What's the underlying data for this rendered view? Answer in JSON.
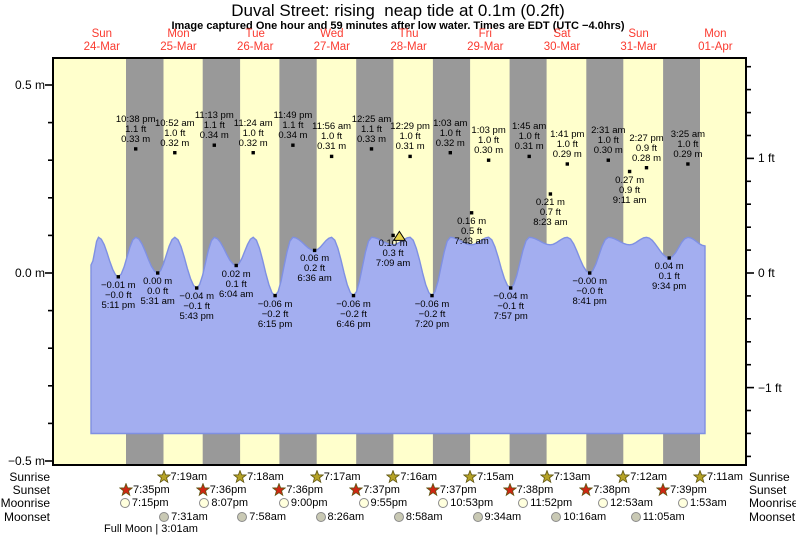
{
  "header": {
    "title": "Duval Street: rising  neap tide at 0.1m (0.2ft)",
    "subtitle": "Image captured One hour and 59 minutes after low water. Times are EDT (UTC −4.0hrs)"
  },
  "colors": {
    "day_band": "#ffffcc",
    "night_band": "#999999",
    "water_fill": "#a3aef0",
    "water_edge": "#7f90e2",
    "day_label": "#fa3b30",
    "marker_fill": "#e8d44a",
    "sunrise_star": "#b5a226",
    "sunset_star": "#cf2613",
    "moonrise_fill": "#ffffdd",
    "moonset_fill": "#c9c9b4",
    "text": "#000000"
  },
  "chart_data": {
    "type": "area",
    "title": "Duval Street: rising  neap tide at 0.1m (0.2ft)",
    "x_axis": {
      "days": [
        {
          "name": "Sun",
          "date": "24-Mar"
        },
        {
          "name": "Mon",
          "date": "25-Mar"
        },
        {
          "name": "Tue",
          "date": "26-Mar"
        },
        {
          "name": "Wed",
          "date": "27-Mar"
        },
        {
          "name": "Thu",
          "date": "28-Mar"
        },
        {
          "name": "Fri",
          "date": "29-Mar"
        },
        {
          "name": "Sat",
          "date": "30-Mar"
        },
        {
          "name": "Sun",
          "date": "31-Mar"
        },
        {
          "name": "Mon",
          "date": "01-Apr"
        }
      ]
    },
    "y_axis_left": {
      "labels": [
        "0.5 m",
        "0.0 m",
        "−0.5 m"
      ],
      "values_m": [
        0.5,
        0.0,
        -0.5
      ]
    },
    "y_axis_right": {
      "labels": [
        "1 ft",
        "0 ft",
        "−1 ft"
      ],
      "values_ft": [
        1,
        0,
        -1
      ]
    },
    "tide_events": [
      {
        "type": "high",
        "day": 0,
        "time": "10:38 pm",
        "ft": "1.1 ft",
        "m": "0.33 m",
        "value_m": 0.33
      },
      {
        "type": "high",
        "day": 1,
        "time": "10:52 am",
        "ft": "1.0 ft",
        "m": "0.32 m",
        "value_m": 0.32
      },
      {
        "type": "high",
        "day": 1,
        "time": "11:13 pm",
        "ft": "1.1 ft",
        "m": "0.34 m",
        "value_m": 0.34
      },
      {
        "type": "high",
        "day": 2,
        "time": "11:24 am",
        "ft": "1.0 ft",
        "m": "0.32 m",
        "value_m": 0.32
      },
      {
        "type": "high",
        "day": 2,
        "time": "11:49 pm",
        "ft": "1.1 ft",
        "m": "0.34 m",
        "value_m": 0.34
      },
      {
        "type": "high",
        "day": 3,
        "time": "11:56 am",
        "ft": "1.0 ft",
        "m": "0.31 m",
        "value_m": 0.31
      },
      {
        "type": "high",
        "day": 4,
        "time": "12:25 am",
        "ft": "1.1 ft",
        "m": "0.33 m",
        "value_m": 0.33
      },
      {
        "type": "high",
        "day": 4,
        "time": "12:29 pm",
        "ft": "1.0 ft",
        "m": "0.31 m",
        "value_m": 0.31
      },
      {
        "type": "high",
        "day": 5,
        "time": "1:03 am",
        "ft": "1.0 ft",
        "m": "0.32 m",
        "value_m": 0.32
      },
      {
        "type": "high",
        "day": 5,
        "time": "1:03 pm",
        "ft": "1.0 ft",
        "m": "0.30 m",
        "value_m": 0.3
      },
      {
        "type": "high",
        "day": 6,
        "time": "1:45 am",
        "ft": "1.0 ft",
        "m": "0.31 m",
        "value_m": 0.31
      },
      {
        "type": "high",
        "day": 6,
        "time": "1:41 pm",
        "ft": "1.0 ft",
        "m": "0.29 m",
        "value_m": 0.29
      },
      {
        "type": "high",
        "day": 7,
        "time": "2:31 am",
        "ft": "1.0 ft",
        "m": "0.30 m",
        "value_m": 0.3
      },
      {
        "type": "high",
        "day": 7,
        "time": "2:27 pm",
        "ft": "0.9 ft",
        "m": "0.28 m",
        "value_m": 0.28
      },
      {
        "type": "high",
        "day": 8,
        "time": "3:25 am",
        "ft": "1.0 ft",
        "m": "0.29 m",
        "value_m": 0.29
      },
      {
        "type": "low",
        "day": 0,
        "time": "5:11 pm",
        "ft": "−0.0 ft",
        "m": "−0.01 m",
        "value_m": -0.01
      },
      {
        "type": "low",
        "day": 1,
        "time": "5:31 am",
        "ft": "0.0 ft",
        "m": "0.00 m",
        "value_m": 0.0
      },
      {
        "type": "low",
        "day": 1,
        "time": "5:43 pm",
        "ft": "−0.1 ft",
        "m": "−0.04 m",
        "value_m": -0.04
      },
      {
        "type": "low",
        "day": 2,
        "time": "6:04 am",
        "ft": "0.1 ft",
        "m": "0.02 m",
        "value_m": 0.02
      },
      {
        "type": "low",
        "day": 2,
        "time": "6:15 pm",
        "ft": "−0.2 ft",
        "m": "−0.06 m",
        "value_m": -0.06
      },
      {
        "type": "low",
        "day": 3,
        "time": "6:36 am",
        "ft": "0.2 ft",
        "m": "0.06 m",
        "value_m": 0.06
      },
      {
        "type": "low",
        "day": 3,
        "time": "6:46 pm",
        "ft": "−0.2 ft",
        "m": "−0.06 m",
        "value_m": -0.06
      },
      {
        "type": "low",
        "day": 4,
        "time": "7:09 am",
        "ft": "0.3 ft",
        "m": "0.10 m",
        "value_m": 0.1
      },
      {
        "type": "low",
        "day": 4,
        "time": "7:20 pm",
        "ft": "−0.2 ft",
        "m": "−0.06 m",
        "value_m": -0.06
      },
      {
        "type": "low",
        "day": 5,
        "time": "7:43 am",
        "ft": "0.5 ft",
        "m": "0.16 m",
        "value_m": 0.16
      },
      {
        "type": "low",
        "day": 5,
        "time": "7:57 pm",
        "ft": "−0.1 ft",
        "m": "−0.04 m",
        "value_m": -0.04
      },
      {
        "type": "low",
        "day": 6,
        "time": "8:23 am",
        "ft": "0.7 ft",
        "m": "0.21 m",
        "value_m": 0.21
      },
      {
        "type": "low",
        "day": 6,
        "time": "8:41 pm",
        "ft": "−0.0 ft",
        "m": "−0.00 m",
        "value_m": 0.0
      },
      {
        "type": "low",
        "day": 7,
        "time": "9:11 am",
        "ft": "0.9 ft",
        "m": "0.27 m",
        "value_m": 0.27
      },
      {
        "type": "low",
        "day": 7,
        "time": "9:34 pm",
        "ft": "0.1 ft",
        "m": "0.04 m",
        "value_m": 0.04
      }
    ],
    "current_marker": {
      "day": 4,
      "time": "9:08 am",
      "value_m": 0.1,
      "shape": "triangle-up"
    },
    "sun_moon": {
      "sunrise": {
        "icon": "sunrise-star-icon",
        "times": [
          {
            "day": 1,
            "time": "7:19am"
          },
          {
            "day": 2,
            "time": "7:18am"
          },
          {
            "day": 3,
            "time": "7:17am"
          },
          {
            "day": 4,
            "time": "7:16am"
          },
          {
            "day": 5,
            "time": "7:15am"
          },
          {
            "day": 6,
            "time": "7:13am"
          },
          {
            "day": 7,
            "time": "7:12am"
          },
          {
            "day": 8,
            "time": "7:11am"
          }
        ]
      },
      "sunset": {
        "icon": "sunset-star-icon",
        "times": [
          {
            "day": 0,
            "time": "7:35pm"
          },
          {
            "day": 1,
            "time": "7:36pm"
          },
          {
            "day": 2,
            "time": "7:36pm"
          },
          {
            "day": 3,
            "time": "7:37pm"
          },
          {
            "day": 4,
            "time": "7:37pm"
          },
          {
            "day": 5,
            "time": "7:38pm"
          },
          {
            "day": 6,
            "time": "7:38pm"
          },
          {
            "day": 7,
            "time": "7:39pm"
          }
        ]
      },
      "moonrise": {
        "icon": "moonrise-circle-icon",
        "times": [
          {
            "day": 0,
            "time": "7:15pm"
          },
          {
            "day": 1,
            "time": "8:07pm"
          },
          {
            "day": 2,
            "time": "9:00pm"
          },
          {
            "day": 3,
            "time": "9:55pm"
          },
          {
            "day": 4,
            "time": "10:53pm"
          },
          {
            "day": 5,
            "time": "11:52pm"
          },
          {
            "day": 7,
            "time": "12:53am"
          },
          {
            "day": 8,
            "time": "1:53am"
          }
        ]
      },
      "moonset": {
        "icon": "moonset-circle-icon",
        "times": [
          {
            "day": 1,
            "time": "7:31am"
          },
          {
            "day": 2,
            "time": "7:58am"
          },
          {
            "day": 3,
            "time": "8:26am"
          },
          {
            "day": 4,
            "time": "8:58am"
          },
          {
            "day": 5,
            "time": "9:34am"
          },
          {
            "day": 6,
            "time": "10:16am"
          },
          {
            "day": 7,
            "time": "11:05am"
          }
        ]
      }
    },
    "full_moon": "Full Moon | 3:01am"
  },
  "footer": {
    "row_labels": [
      "Sunrise",
      "Sunset",
      "Moonrise",
      "Moonset"
    ]
  }
}
